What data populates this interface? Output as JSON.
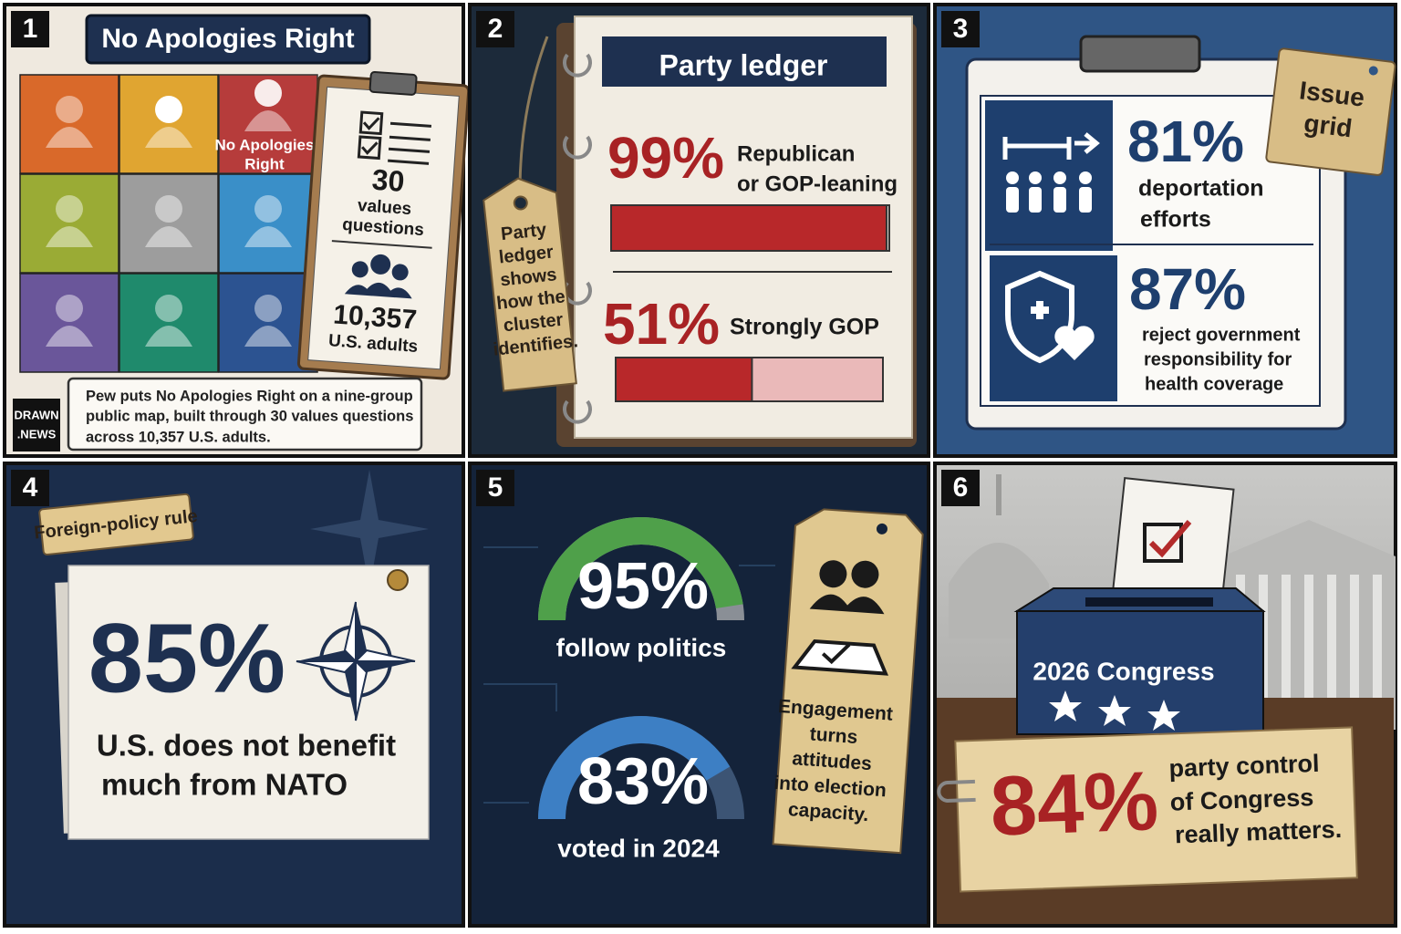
{
  "panel1": {
    "number": "1",
    "title": "No Apologies Right",
    "grid_label": [
      "No Apologies",
      "Right"
    ],
    "clipboard": {
      "count": "30",
      "count_text": [
        "values",
        "questions"
      ],
      "adults": "10,357",
      "adults_text": "U.S. adults"
    },
    "caption": [
      "Pew puts No Apologies Right on a nine-group",
      "public map, built through 30 values questions",
      "across 10,357 U.S. adults."
    ],
    "logo": [
      "DRAWN",
      ".NEWS"
    ]
  },
  "panel2": {
    "number": "2",
    "title": "Party ledger",
    "tag": [
      "Party",
      "ledger",
      "shows",
      "how the",
      "cluster",
      "identifies."
    ],
    "stats": [
      {
        "percent": {
          "value": 99,
          "label": "99%"
        },
        "text": [
          "Republican",
          "or GOP-leaning"
        ]
      },
      {
        "percent": {
          "value": 51,
          "label": "51%"
        },
        "text": [
          "Strongly GOP"
        ]
      }
    ]
  },
  "panel3": {
    "number": "3",
    "tag": [
      "Issue",
      "grid"
    ],
    "stats": [
      {
        "percent": "81%",
        "text": [
          "deportation",
          "efforts"
        ]
      },
      {
        "percent": "87%",
        "text": [
          "reject government",
          "responsibility for",
          "health coverage"
        ]
      }
    ]
  },
  "panel4": {
    "number": "4",
    "label": "Foreign-policy rule",
    "percent": "85%",
    "text": [
      "U.S.  does not benefit",
      "much from NATO"
    ]
  },
  "panel5": {
    "number": "5",
    "gauges": [
      {
        "percent": {
          "value": 95,
          "label": "95%"
        },
        "text": "follow politics"
      },
      {
        "percent": {
          "value": 83,
          "label": "83%"
        },
        "text": "voted in 2024"
      }
    ],
    "tag": [
      "Engagement",
      "turns",
      "attitudes",
      "into election",
      "capacity."
    ]
  },
  "panel6": {
    "number": "6",
    "box_label": "2026 Congress",
    "percent": "84%",
    "text": [
      "party control",
      "of Congress",
      "really matters."
    ]
  }
}
